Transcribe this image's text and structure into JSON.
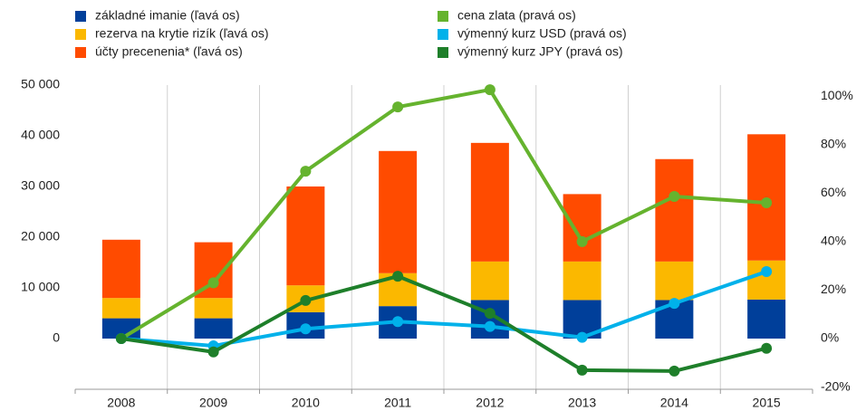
{
  "chart_data": {
    "type": "bar",
    "categories": [
      "2008",
      "2009",
      "2010",
      "2011",
      "2012",
      "2013",
      "2014",
      "2015"
    ],
    "series": [
      {
        "name": "základné imanie (ľavá os)",
        "color": "#003f9a",
        "values": [
          4000,
          4000,
          5200,
          6400,
          7600,
          7600,
          7600,
          7700
        ]
      },
      {
        "name": "rezerva na krytie rizík (ľavá os)",
        "color": "#fbb800",
        "values": [
          4000,
          4000,
          5300,
          6500,
          7600,
          7600,
          7600,
          7700
        ]
      },
      {
        "name": "účty precenenia* (ľavá os)",
        "color": "#ff4b00",
        "values": [
          11500,
          11000,
          19500,
          24100,
          23400,
          13300,
          20200,
          24900
        ]
      },
      {
        "name": "cena zlata (pravá os)",
        "color": "#65b32e",
        "type": "line",
        "axis": "y2",
        "values": [
          0,
          23,
          69,
          95.5,
          102.6,
          40,
          58.6,
          56
        ]
      },
      {
        "name": "výmenný kurz USD (pravá os)",
        "color": "#00b1ea",
        "type": "line",
        "axis": "y2",
        "values": [
          0,
          -3,
          4,
          7,
          5,
          0.5,
          14.5,
          27.6
        ]
      },
      {
        "name": "výmenný kurz JPY (pravá os)",
        "color": "#1e7f2a",
        "type": "line",
        "axis": "y2",
        "values": [
          0,
          -5.5,
          15.7,
          25.7,
          10.4,
          -13,
          -13.4,
          -4
        ]
      }
    ],
    "ylim": [
      -10000,
      50000
    ],
    "yticks": [
      {
        "value": 0,
        "label": "0"
      },
      {
        "value": 10000,
        "label": "10 000"
      },
      {
        "value": 20000,
        "label": "20 000"
      },
      {
        "value": 30000,
        "label": "30 000"
      },
      {
        "value": 40000,
        "label": "40 000"
      },
      {
        "value": 50000,
        "label": "50 000"
      }
    ],
    "y2lim": [
      -20.9,
      104.5
    ],
    "y2ticks": [
      {
        "value": -20,
        "label": "-20%"
      },
      {
        "value": 0,
        "label": "0%"
      },
      {
        "value": 20,
        "label": "20%"
      },
      {
        "value": 40,
        "label": "40%"
      },
      {
        "value": 60,
        "label": "60%"
      },
      {
        "value": 80,
        "label": "80%"
      },
      {
        "value": 100,
        "label": "100%"
      }
    ],
    "stacked": true,
    "grid": "x"
  }
}
